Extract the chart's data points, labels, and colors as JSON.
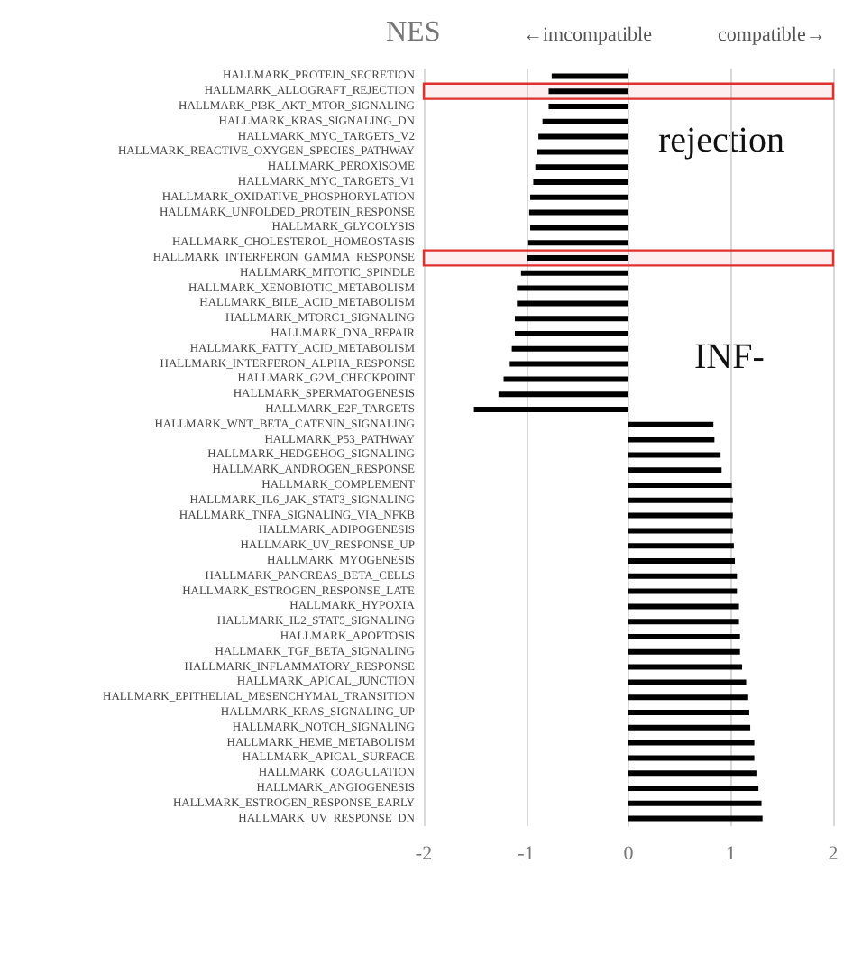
{
  "chart_data": {
    "type": "bar",
    "orientation": "horizontal",
    "xlabel": "NES",
    "annotations": [
      "←imcompatible",
      "compatible→",
      "rejection",
      "INF-"
    ],
    "categories": [
      "HALLMARK_PROTEIN_SECRETION",
      "HALLMARK_ALLOGRAFT_REJECTION",
      "HALLMARK_PI3K_AKT_MTOR_SIGNALING",
      "HALLMARK_KRAS_SIGNALING_DN",
      "HALLMARK_MYC_TARGETS_V2",
      "HALLMARK_REACTIVE_OXYGEN_SPECIES_PATHWAY",
      "HALLMARK_PEROXISOME",
      "HALLMARK_MYC_TARGETS_V1",
      "HALLMARK_OXIDATIVE_PHOSPHORYLATION",
      "HALLMARK_UNFOLDED_PROTEIN_RESPONSE",
      "HALLMARK_GLYCOLYSIS",
      "HALLMARK_CHOLESTEROL_HOMEOSTASIS",
      "HALLMARK_INTERFERON_GAMMA_RESPONSE",
      "HALLMARK_MITOTIC_SPINDLE",
      "HALLMARK_XENOBIOTIC_METABOLISM",
      "HALLMARK_BILE_ACID_METABOLISM",
      "HALLMARK_MTORC1_SIGNALING",
      "HALLMARK_DNA_REPAIR",
      "HALLMARK_FATTY_ACID_METABOLISM",
      "HALLMARK_INTERFERON_ALPHA_RESPONSE",
      "HALLMARK_G2M_CHECKPOINT",
      "HALLMARK_SPERMATOGENESIS",
      "HALLMARK_E2F_TARGETS",
      "HALLMARK_WNT_BETA_CATENIN_SIGNALING",
      "HALLMARK_P53_PATHWAY",
      "HALLMARK_HEDGEHOG_SIGNALING",
      "HALLMARK_ANDROGEN_RESPONSE",
      "HALLMARK_COMPLEMENT",
      "HALLMARK_IL6_JAK_STAT3_SIGNALING",
      "HALLMARK_TNFA_SIGNALING_VIA_NFKB",
      "HALLMARK_ADIPOGENESIS",
      "HALLMARK_UV_RESPONSE_UP",
      "HALLMARK_MYOGENESIS",
      "HALLMARK_PANCREAS_BETA_CELLS",
      "HALLMARK_ESTROGEN_RESPONSE_LATE",
      "HALLMARK_HYPOXIA",
      "HALLMARK_IL2_STAT5_SIGNALING",
      "HALLMARK_APOPTOSIS",
      "HALLMARK_TGF_BETA_SIGNALING",
      "HALLMARK_INFLAMMATORY_RESPONSE",
      "HALLMARK_APICAL_JUNCTION",
      "HALLMARK_EPITHELIAL_MESENCHYMAL_TRANSITION",
      "HALLMARK_KRAS_SIGNALING_UP",
      "HALLMARK_NOTCH_SIGNALING",
      "HALLMARK_HEME_METABOLISM",
      "HALLMARK_APICAL_SURFACE",
      "HALLMARK_COAGULATION",
      "HALLMARK_ANGIOGENESIS",
      "HALLMARK_ESTROGEN_RESPONSE_EARLY",
      "HALLMARK_UV_RESPONSE_DN"
    ],
    "values": [
      -0.75,
      -0.78,
      -0.78,
      -0.84,
      -0.88,
      -0.89,
      -0.91,
      -0.93,
      -0.96,
      -0.97,
      -0.96,
      -0.98,
      -0.99,
      -1.05,
      -1.09,
      -1.09,
      -1.11,
      -1.11,
      -1.14,
      -1.16,
      -1.22,
      -1.27,
      -1.51,
      0.83,
      0.84,
      0.9,
      0.91,
      1.01,
      1.02,
      1.02,
      1.02,
      1.03,
      1.04,
      1.06,
      1.06,
      1.08,
      1.08,
      1.09,
      1.09,
      1.11,
      1.15,
      1.17,
      1.18,
      1.19,
      1.23,
      1.23,
      1.25,
      1.27,
      1.3,
      1.31
    ],
    "color": "#000000",
    "xlim": [
      -2,
      2
    ],
    "xticks": [
      -2,
      -1,
      0,
      1,
      2
    ],
    "grid": "x",
    "bands": [
      {
        "axis": "y",
        "from": "HALLMARK_ALLOGRAFT_REJECTION",
        "to": "HALLMARK_ALLOGRAFT_REJECTION",
        "color": "#e03030"
      },
      {
        "axis": "y",
        "from": "HALLMARK_INTERFERON_GAMMA_RESPONSE",
        "to": "HALLMARK_INTERFERON_GAMMA_RESPONSE",
        "color": "#e03030"
      }
    ]
  }
}
